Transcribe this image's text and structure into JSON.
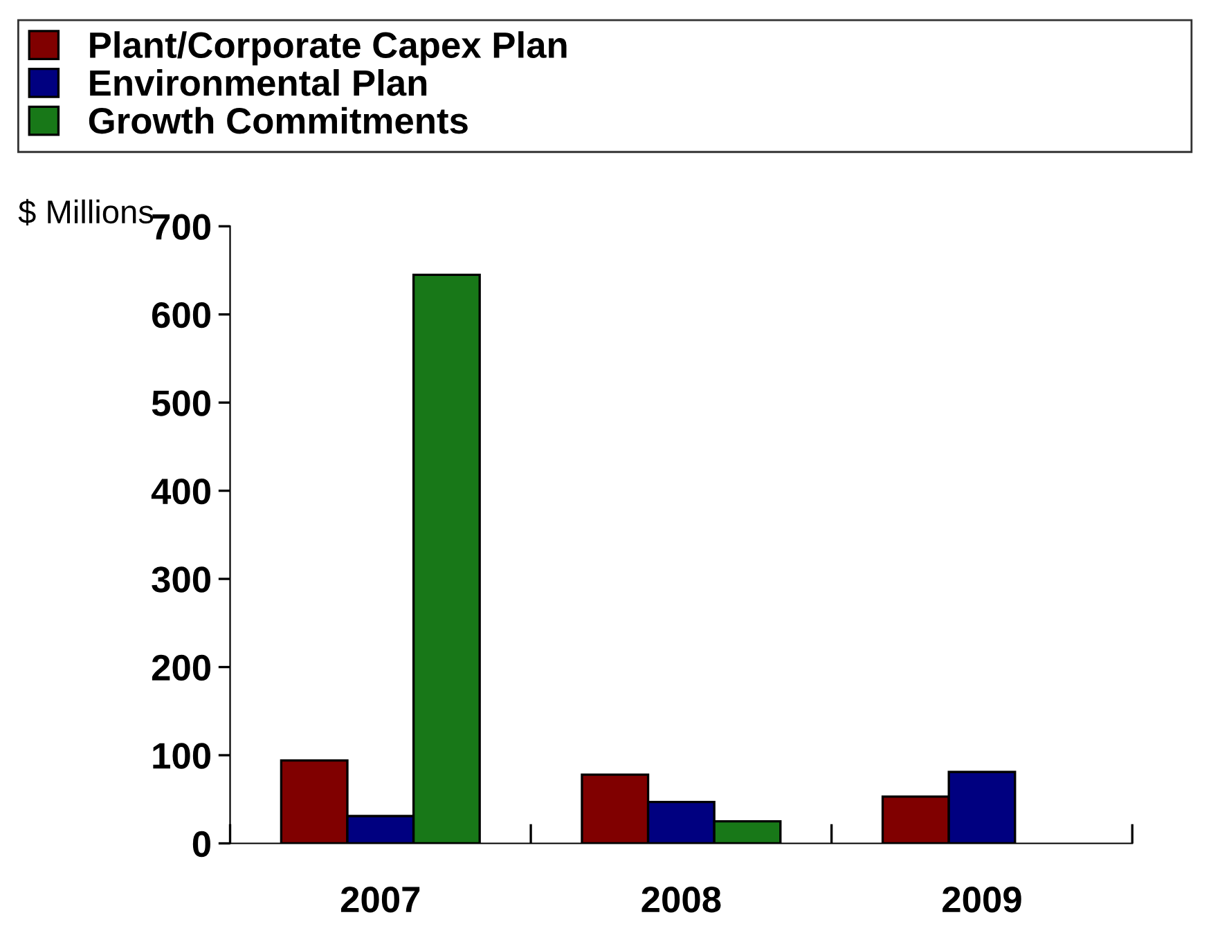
{
  "chart_data": {
    "type": "bar",
    "ylabel": "$ Millions",
    "categories": [
      "2007",
      "2008",
      "2009"
    ],
    "series": [
      {
        "name": "Plant/Corporate Capex Plan",
        "color": "#800000",
        "values": [
          94,
          78,
          53
        ]
      },
      {
        "name": "Environmental Plan",
        "color": "#000080",
        "values": [
          31,
          47,
          81
        ]
      },
      {
        "name": "Growth Commitments",
        "color": "#187818",
        "values": [
          645,
          25,
          null
        ]
      }
    ],
    "ylim": [
      0,
      700
    ],
    "yticks": [
      0,
      100,
      200,
      300,
      400,
      500,
      600,
      700
    ],
    "grid": false,
    "legend": "top"
  }
}
